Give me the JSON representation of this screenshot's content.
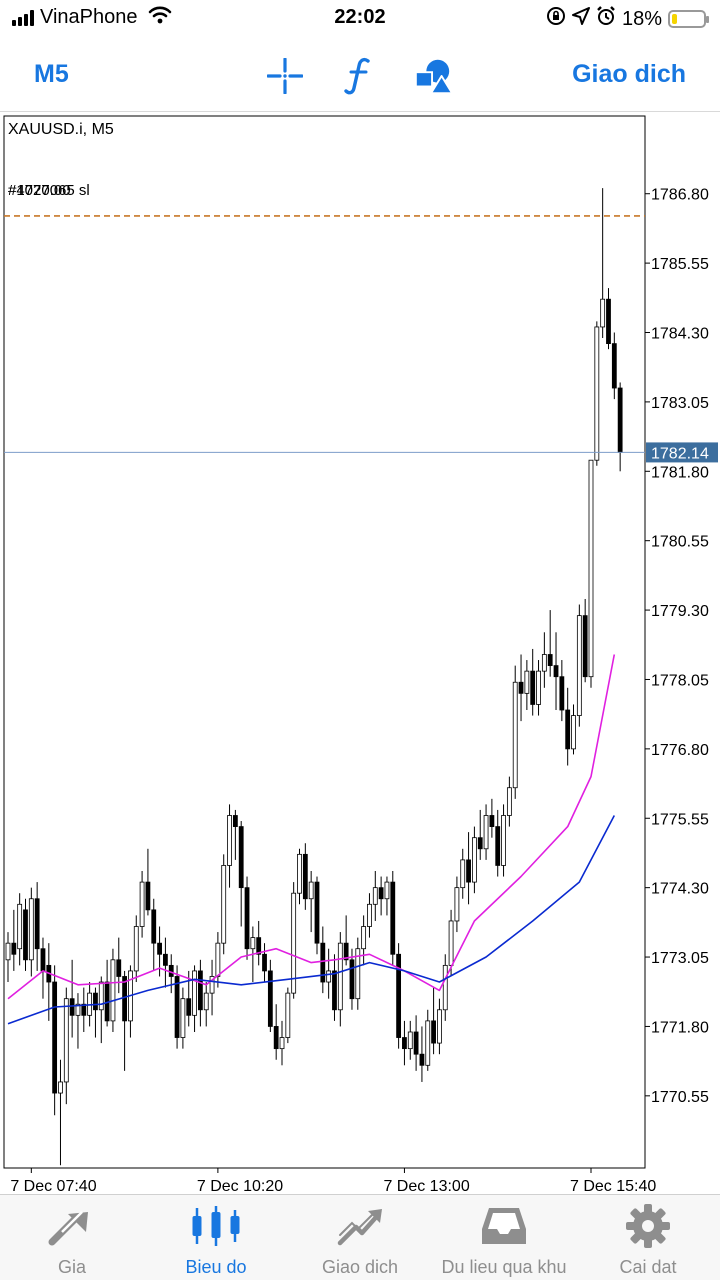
{
  "status_bar": {
    "carrier": "VinaPhone",
    "time": "22:02",
    "battery": "18%",
    "battery_level": 0.18,
    "icons": [
      "cellular-signal-icon",
      "wifi-icon",
      "orientation-lock-icon",
      "location-arrow-icon",
      "alarm-icon",
      "battery-icon"
    ]
  },
  "toolbar": {
    "period": "M5",
    "tools": [
      "crosshair-icon",
      "indicators-icon",
      "objects-icon"
    ],
    "trade": "Giao dich",
    "accent_color": "#1877e0"
  },
  "chart": {
    "symbol_label": "XAUUSD.i, M5",
    "order_label": "#4020065 sl",
    "order_label_overlap": "#1777.00",
    "current_price_label": "1782.14",
    "colors": {
      "candle_bull": "#ffffff",
      "candle_bear": "#000000",
      "ma_fast": "#e020e0",
      "ma_slow": "#0a2ad0",
      "sl_line": "#c87828",
      "price_line": "#7d9dc9",
      "price_tag": "#3c6e9e"
    }
  },
  "chart_data": {
    "type": "candlestick",
    "symbol": "XAUUSD.i",
    "timeframe": "M5",
    "y_ticks": [
      1786.8,
      1785.55,
      1784.3,
      1783.05,
      1781.8,
      1780.55,
      1779.3,
      1778.05,
      1776.8,
      1775.55,
      1774.3,
      1773.05,
      1771.8,
      1770.55
    ],
    "x_ticks": [
      "7 Dec 07:40",
      "7 Dec 10:20",
      "7 Dec 13:00",
      "7 Dec 15:40"
    ],
    "ylim": [
      1769.25,
      1788.2
    ],
    "current_price": 1782.14,
    "stop_loss_level": 1786.4,
    "grid": false,
    "candles": [
      [
        1773.0,
        1773.5,
        1772.6,
        1773.3
      ],
      [
        1773.3,
        1773.9,
        1772.8,
        1773.1
      ],
      [
        1773.2,
        1774.2,
        1772.9,
        1774.0
      ],
      [
        1773.9,
        1774.1,
        1772.8,
        1773.0
      ],
      [
        1773.0,
        1774.3,
        1772.7,
        1774.1
      ],
      [
        1774.1,
        1774.4,
        1772.8,
        1773.2
      ],
      [
        1773.2,
        1773.4,
        1772.3,
        1772.8
      ],
      [
        1772.9,
        1773.3,
        1771.9,
        1772.6
      ],
      [
        1772.6,
        1772.9,
        1770.2,
        1770.6
      ],
      [
        1770.6,
        1771.2,
        1769.3,
        1770.8
      ],
      [
        1770.8,
        1772.5,
        1770.4,
        1772.3
      ],
      [
        1772.3,
        1773.0,
        1771.6,
        1772.0
      ],
      [
        1772.0,
        1772.4,
        1771.4,
        1772.2
      ],
      [
        1772.2,
        1772.5,
        1771.7,
        1772.0
      ],
      [
        1772.0,
        1772.6,
        1771.8,
        1772.4
      ],
      [
        1772.4,
        1772.5,
        1771.6,
        1772.1
      ],
      [
        1772.1,
        1772.7,
        1771.5,
        1772.6
      ],
      [
        1772.6,
        1773.0,
        1771.8,
        1771.9
      ],
      [
        1771.9,
        1773.2,
        1771.7,
        1773.0
      ],
      [
        1773.0,
        1773.4,
        1772.4,
        1772.7
      ],
      [
        1772.7,
        1772.8,
        1771.0,
        1771.9
      ],
      [
        1771.9,
        1772.9,
        1771.6,
        1772.8
      ],
      [
        1772.8,
        1773.8,
        1772.6,
        1773.6
      ],
      [
        1773.6,
        1774.6,
        1773.4,
        1774.4
      ],
      [
        1774.4,
        1775.0,
        1773.8,
        1773.9
      ],
      [
        1773.9,
        1774.1,
        1772.8,
        1773.3
      ],
      [
        1773.3,
        1773.6,
        1772.7,
        1773.1
      ],
      [
        1773.1,
        1773.4,
        1772.5,
        1772.9
      ],
      [
        1772.9,
        1773.1,
        1772.4,
        1772.7
      ],
      [
        1772.7,
        1772.9,
        1771.4,
        1771.6
      ],
      [
        1771.6,
        1772.5,
        1771.4,
        1772.3
      ],
      [
        1772.3,
        1772.8,
        1771.8,
        1772.0
      ],
      [
        1772.0,
        1772.9,
        1771.7,
        1772.8
      ],
      [
        1772.8,
        1773.0,
        1771.8,
        1772.1
      ],
      [
        1772.1,
        1772.6,
        1771.8,
        1772.4
      ],
      [
        1772.4,
        1773.0,
        1772.0,
        1772.7
      ],
      [
        1772.7,
        1773.5,
        1772.5,
        1773.3
      ],
      [
        1773.3,
        1774.9,
        1773.1,
        1774.7
      ],
      [
        1774.7,
        1775.8,
        1774.3,
        1775.6
      ],
      [
        1775.6,
        1775.7,
        1774.8,
        1775.4
      ],
      [
        1775.4,
        1775.5,
        1773.6,
        1774.3
      ],
      [
        1774.3,
        1774.5,
        1773.0,
        1773.2
      ],
      [
        1773.2,
        1773.6,
        1772.6,
        1773.4
      ],
      [
        1773.4,
        1773.7,
        1772.9,
        1773.1
      ],
      [
        1773.1,
        1773.3,
        1772.6,
        1772.8
      ],
      [
        1772.8,
        1773.0,
        1771.7,
        1771.8
      ],
      [
        1771.8,
        1772.2,
        1771.2,
        1771.4
      ],
      [
        1771.4,
        1771.9,
        1771.1,
        1771.6
      ],
      [
        1771.6,
        1772.5,
        1771.5,
        1772.4
      ],
      [
        1772.4,
        1774.4,
        1772.3,
        1774.2
      ],
      [
        1774.2,
        1775.0,
        1774.0,
        1774.9
      ],
      [
        1774.9,
        1775.1,
        1773.9,
        1774.1
      ],
      [
        1774.1,
        1774.6,
        1773.5,
        1774.4
      ],
      [
        1774.4,
        1774.5,
        1773.1,
        1773.3
      ],
      [
        1773.3,
        1773.6,
        1772.4,
        1772.6
      ],
      [
        1772.6,
        1773.2,
        1772.3,
        1772.8
      ],
      [
        1772.8,
        1773.1,
        1771.9,
        1772.1
      ],
      [
        1772.1,
        1773.5,
        1771.8,
        1773.3
      ],
      [
        1773.3,
        1773.8,
        1772.9,
        1773.0
      ],
      [
        1773.0,
        1773.2,
        1772.1,
        1772.3
      ],
      [
        1772.3,
        1773.4,
        1772.1,
        1773.2
      ],
      [
        1773.2,
        1773.8,
        1772.9,
        1773.6
      ],
      [
        1773.6,
        1774.2,
        1773.4,
        1774.0
      ],
      [
        1774.0,
        1774.6,
        1773.7,
        1774.3
      ],
      [
        1774.3,
        1774.5,
        1773.8,
        1774.1
      ],
      [
        1774.1,
        1774.5,
        1773.8,
        1774.4
      ],
      [
        1774.4,
        1774.6,
        1772.9,
        1773.1
      ],
      [
        1773.1,
        1773.3,
        1771.4,
        1771.6
      ],
      [
        1771.6,
        1771.9,
        1771.1,
        1771.4
      ],
      [
        1771.4,
        1771.9,
        1771.2,
        1771.7
      ],
      [
        1771.7,
        1772.0,
        1771.0,
        1771.3
      ],
      [
        1771.3,
        1771.8,
        1770.8,
        1771.1
      ],
      [
        1771.1,
        1772.1,
        1771.0,
        1771.9
      ],
      [
        1771.9,
        1772.5,
        1771.3,
        1771.5
      ],
      [
        1771.5,
        1772.3,
        1771.3,
        1772.1
      ],
      [
        1772.1,
        1773.1,
        1771.9,
        1772.9
      ],
      [
        1772.9,
        1773.9,
        1772.7,
        1773.7
      ],
      [
        1773.7,
        1774.5,
        1773.5,
        1774.3
      ],
      [
        1774.3,
        1775.0,
        1774.1,
        1774.8
      ],
      [
        1774.8,
        1775.3,
        1774.0,
        1774.4
      ],
      [
        1774.4,
        1775.4,
        1774.2,
        1775.2
      ],
      [
        1775.2,
        1775.7,
        1774.8,
        1775.0
      ],
      [
        1775.0,
        1775.8,
        1774.8,
        1775.6
      ],
      [
        1775.6,
        1775.9,
        1775.2,
        1775.4
      ],
      [
        1775.4,
        1775.7,
        1774.5,
        1774.7
      ],
      [
        1774.7,
        1775.8,
        1774.5,
        1775.6
      ],
      [
        1775.6,
        1776.3,
        1775.4,
        1776.1
      ],
      [
        1776.1,
        1778.3,
        1775.9,
        1778.0
      ],
      [
        1778.0,
        1778.5,
        1777.3,
        1777.8
      ],
      [
        1777.8,
        1778.4,
        1777.5,
        1778.2
      ],
      [
        1778.2,
        1778.6,
        1777.4,
        1777.6
      ],
      [
        1777.6,
        1778.4,
        1777.4,
        1778.2
      ],
      [
        1778.2,
        1778.9,
        1777.9,
        1778.5
      ],
      [
        1778.5,
        1779.3,
        1778.1,
        1778.3
      ],
      [
        1778.3,
        1778.9,
        1777.5,
        1778.1
      ],
      [
        1778.1,
        1778.4,
        1777.3,
        1777.5
      ],
      [
        1777.5,
        1777.9,
        1776.5,
        1776.8
      ],
      [
        1776.8,
        1777.6,
        1776.7,
        1777.4
      ],
      [
        1777.4,
        1779.4,
        1777.2,
        1779.2
      ],
      [
        1779.2,
        1779.5,
        1778.0,
        1778.1
      ],
      [
        1778.1,
        1782.0,
        1777.9,
        1782.0
      ],
      [
        1782.0,
        1784.5,
        1781.9,
        1784.4
      ],
      [
        1784.4,
        1786.9,
        1784.2,
        1784.9
      ],
      [
        1784.9,
        1785.1,
        1784.0,
        1784.1
      ],
      [
        1784.1,
        1784.3,
        1783.1,
        1783.3
      ],
      [
        1783.3,
        1783.4,
        1781.8,
        1782.14
      ]
    ],
    "ma_fast": [
      [
        0,
        1772.3
      ],
      [
        6,
        1772.8
      ],
      [
        12,
        1772.55
      ],
      [
        20,
        1772.6
      ],
      [
        26,
        1772.85
      ],
      [
        34,
        1772.55
      ],
      [
        40,
        1773.05
      ],
      [
        46,
        1773.2
      ],
      [
        52,
        1772.95
      ],
      [
        56,
        1773.0
      ],
      [
        62,
        1773.1
      ],
      [
        68,
        1772.8
      ],
      [
        74,
        1772.45
      ],
      [
        80,
        1773.7
      ],
      [
        88,
        1774.5
      ],
      [
        96,
        1775.4
      ],
      [
        100,
        1776.3
      ],
      [
        104,
        1778.5
      ]
    ],
    "ma_slow": [
      [
        0,
        1771.85
      ],
      [
        8,
        1772.15
      ],
      [
        16,
        1772.2
      ],
      [
        24,
        1772.45
      ],
      [
        32,
        1772.65
      ],
      [
        40,
        1772.55
      ],
      [
        48,
        1772.65
      ],
      [
        56,
        1772.75
      ],
      [
        62,
        1772.95
      ],
      [
        68,
        1772.8
      ],
      [
        74,
        1772.6
      ],
      [
        82,
        1773.05
      ],
      [
        90,
        1773.7
      ],
      [
        98,
        1774.4
      ],
      [
        104,
        1775.6
      ]
    ]
  },
  "tabs": [
    {
      "label": "Gia",
      "icon": "quotes-arrows-icon",
      "active": false
    },
    {
      "label": "Bieu do",
      "icon": "candlestick-chart-icon",
      "active": true
    },
    {
      "label": "Giao dich",
      "icon": "trade-trend-icon",
      "active": false
    },
    {
      "label": "Du lieu qua khu",
      "icon": "history-inbox-icon",
      "active": false
    },
    {
      "label": "Cai dat",
      "icon": "settings-gear-icon",
      "active": false
    }
  ]
}
